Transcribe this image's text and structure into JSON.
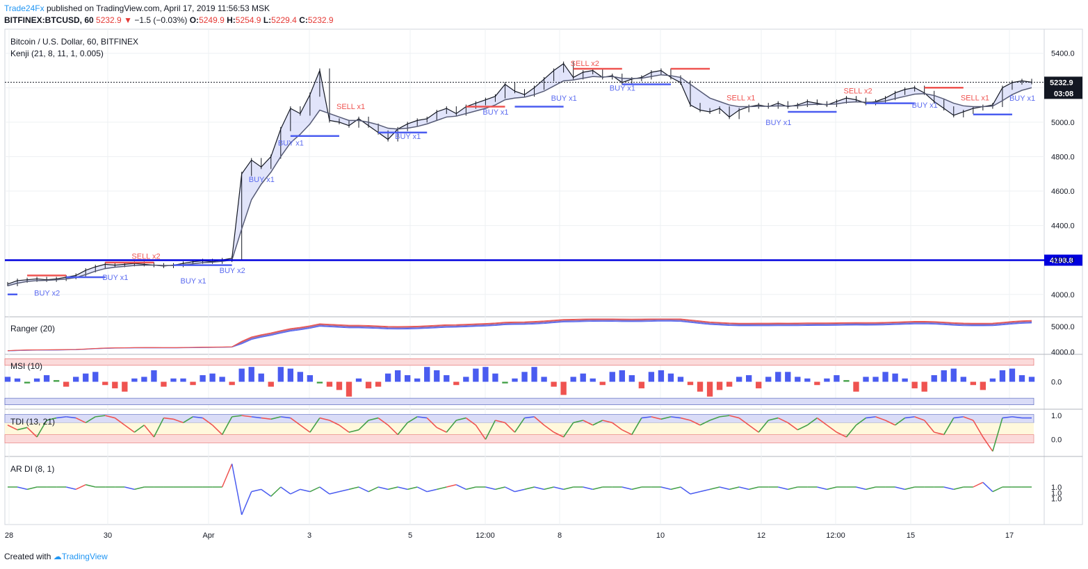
{
  "header": {
    "publisher": "Trade24Fx",
    "published_text": "published on TradingView.com, April 17, 2019 11:56:53 MSK",
    "symbol": "BITFINEX:BTCUSD, 60",
    "last": "5232.9",
    "change": "−1.5 (−0.03%)",
    "o_label": "O:",
    "o_value": "5249.9",
    "h_label": "H:",
    "h_value": "5254.9",
    "l_label": "L:",
    "l_value": "5229.4",
    "c_label": "C:",
    "c_value": "5232.9"
  },
  "footer": {
    "created_with": "Created with",
    "brand": "TradingView"
  },
  "colors": {
    "up": "#4a5cf0",
    "down": "#ef5350",
    "line": "#0000dd",
    "grid": "#eef0f3"
  },
  "chart_data": {
    "type": "line",
    "title": "Bitcoin / U.S. Dollar, 60, BITFINEX",
    "indicator": "Kenji (21, 8, 11, 1, 0.005)",
    "x_ticks": [
      "28",
      "30",
      "Apr",
      "3",
      "5",
      "12:00",
      "8",
      "10",
      "12",
      "12:00",
      "15",
      "17"
    ],
    "ylim": [
      3870,
      5540
    ],
    "y_ticks": [
      "5400.0",
      "5200.0",
      "5000.0",
      "4800.0",
      "4600.0",
      "4400.0",
      "4200.0",
      "4000.0"
    ],
    "y_tick_values": [
      5400,
      5200,
      5000,
      4800,
      4600,
      4400,
      4200,
      4000
    ],
    "current_price": "5232.9",
    "countdown": "03:08",
    "hline_value": 4198.8,
    "hline_label": "4198.8",
    "series": [
      {
        "name": "BTCUSD",
        "values": [
          4060,
          4080,
          4085,
          4090,
          4085,
          4090,
          4100,
          4110,
          4140,
          4160,
          4175,
          4170,
          4175,
          4180,
          4175,
          4170,
          4165,
          4170,
          4180,
          4190,
          4195,
          4190,
          4200,
          4210,
          4700,
          4780,
          4740,
          4800,
          4960,
          5080,
          5050,
          5160,
          5300,
          5010,
          5000,
          4980,
          5020,
          4980,
          4940,
          4900,
          4960,
          4990,
          5010,
          5020,
          5060,
          5080,
          5050,
          5090,
          5110,
          5130,
          5150,
          5220,
          5180,
          5160,
          5200,
          5250,
          5300,
          5340,
          5260,
          5290,
          5300,
          5260,
          5270,
          5230,
          5250,
          5260,
          5290,
          5300,
          5260,
          5230,
          5100,
          5070,
          5060,
          5080,
          5030,
          5070,
          5090,
          5100,
          5090,
          5110,
          5090,
          5100,
          5120,
          5110,
          5100,
          5120,
          5140,
          5130,
          5110,
          5120,
          5140,
          5170,
          5190,
          5200,
          5170,
          5120,
          5080,
          5040,
          5060,
          5080,
          5090,
          5100,
          5200,
          5230,
          5240,
          5232
        ]
      },
      {
        "name": "Kenji",
        "values": [
          4050,
          4065,
          4075,
          4080,
          4082,
          4085,
          4090,
          4098,
          4115,
          4135,
          4150,
          4158,
          4163,
          4168,
          4170,
          4170,
          4168,
          4168,
          4172,
          4178,
          4184,
          4187,
          4192,
          4200,
          4380,
          4550,
          4640,
          4710,
          4800,
          4880,
          4930,
          4990,
          5070,
          5050,
          5030,
          5010,
          5010,
          5000,
          4985,
          4965,
          4960,
          4965,
          4975,
          4990,
          5010,
          5030,
          5035,
          5050,
          5065,
          5080,
          5100,
          5130,
          5140,
          5145,
          5160,
          5180,
          5210,
          5240,
          5245,
          5255,
          5265,
          5262,
          5265,
          5255,
          5253,
          5255,
          5265,
          5275,
          5270,
          5260,
          5220,
          5180,
          5140,
          5120,
          5100,
          5090,
          5090,
          5092,
          5092,
          5095,
          5094,
          5095,
          5102,
          5104,
          5103,
          5106,
          5115,
          5118,
          5116,
          5117,
          5123,
          5137,
          5150,
          5163,
          5166,
          5155,
          5135,
          5110,
          5095,
          5090,
          5090,
          5093,
          5125,
          5160,
          5185,
          5200
        ]
      }
    ],
    "markers": [
      {
        "text": "BUY x2",
        "i": 4,
        "v": 4050,
        "side": "buy"
      },
      {
        "text": "BUY x1",
        "i": 11,
        "v": 4140,
        "side": "buy"
      },
      {
        "text": "SELL x2",
        "i": 14,
        "v": 4190,
        "side": "sell"
      },
      {
        "text": "BUY x1",
        "i": 19,
        "v": 4120,
        "side": "buy"
      },
      {
        "text": "BUY x2",
        "i": 23,
        "v": 4180,
        "side": "buy"
      },
      {
        "text": "BUY x1",
        "i": 26,
        "v": 4710,
        "side": "buy"
      },
      {
        "text": "BUY x1",
        "i": 29,
        "v": 4920,
        "side": "buy"
      },
      {
        "text": "SELL x1",
        "i": 35,
        "v": 5060,
        "side": "sell"
      },
      {
        "text": "BUY x1",
        "i": 41,
        "v": 4960,
        "side": "buy"
      },
      {
        "text": "BUY x1",
        "i": 50,
        "v": 5100,
        "side": "buy"
      },
      {
        "text": "SELL x2",
        "i": 59,
        "v": 5310,
        "side": "sell"
      },
      {
        "text": "BUY x1",
        "i": 57,
        "v": 5180,
        "side": "buy"
      },
      {
        "text": "BUY x1",
        "i": 63,
        "v": 5240,
        "side": "buy"
      },
      {
        "text": "SELL x1",
        "i": 75,
        "v": 5110,
        "side": "sell"
      },
      {
        "text": "BUY x1",
        "i": 79,
        "v": 5040,
        "side": "buy"
      },
      {
        "text": "SELL x2",
        "i": 87,
        "v": 5150,
        "side": "sell"
      },
      {
        "text": "BUY x1",
        "i": 94,
        "v": 5140,
        "side": "buy"
      },
      {
        "text": "SELL x1",
        "i": 99,
        "v": 5110,
        "side": "sell"
      },
      {
        "text": "BUY x1",
        "i": 104,
        "v": 5180,
        "side": "buy"
      }
    ],
    "levels": [
      {
        "i0": 0,
        "i1": 1,
        "v": 4000,
        "side": "buy"
      },
      {
        "i0": 2,
        "i1": 6,
        "v": 4110,
        "side": "sell"
      },
      {
        "i0": 6,
        "i1": 10,
        "v": 4100,
        "side": "buy"
      },
      {
        "i0": 10,
        "i1": 15,
        "v": 4185,
        "side": "sell"
      },
      {
        "i0": 17,
        "i1": 23,
        "v": 4170,
        "side": "buy"
      },
      {
        "i0": 29,
        "i1": 34,
        "v": 4920,
        "side": "buy"
      },
      {
        "i0": 38,
        "i1": 43,
        "v": 4940,
        "side": "buy"
      },
      {
        "i0": 47,
        "i1": 51,
        "v": 5090,
        "side": "sell"
      },
      {
        "i0": 52,
        "i1": 57,
        "v": 5090,
        "side": "buy"
      },
      {
        "i0": 58,
        "i1": 63,
        "v": 5310,
        "side": "sell"
      },
      {
        "i0": 63,
        "i1": 68,
        "v": 5220,
        "side": "buy"
      },
      {
        "i0": 68,
        "i1": 72,
        "v": 5310,
        "side": "sell"
      },
      {
        "i0": 80,
        "i1": 85,
        "v": 5060,
        "side": "buy"
      },
      {
        "i0": 88,
        "i1": 93,
        "v": 5110,
        "side": "buy"
      },
      {
        "i0": 94,
        "i1": 98,
        "v": 5200,
        "side": "sell"
      },
      {
        "i0": 99,
        "i1": 103,
        "v": 5045,
        "side": "buy"
      }
    ],
    "panels": [
      {
        "name": "Ranger (20)",
        "type": "line",
        "ylim": [
          3990,
          5300
        ],
        "y_ticks": [
          "5000.0",
          "4000.0"
        ],
        "y_tick_values": [
          5000,
          4000
        ]
      },
      {
        "name": "MSI (10)",
        "type": "bar",
        "ylim": [
          -1.5,
          1.5
        ],
        "y_ticks": [
          "0.0"
        ],
        "y_tick_values": [
          0
        ],
        "values": [
          0.3,
          0.2,
          -0.1,
          0.2,
          0.4,
          0.1,
          -0.3,
          0.3,
          0.5,
          0.6,
          -0.2,
          -0.4,
          -0.6,
          0.2,
          0.3,
          0.7,
          -0.3,
          0.2,
          0.2,
          -0.2,
          0.4,
          0.5,
          0.3,
          -0.2,
          0.8,
          0.9,
          0.5,
          -0.3,
          0.9,
          0.8,
          0.6,
          0.4,
          -0.1,
          -0.3,
          -0.5,
          -0.9,
          0.2,
          -0.4,
          -0.3,
          0.5,
          0.7,
          0.4,
          0.2,
          0.9,
          0.7,
          0.4,
          -0.2,
          0.3,
          0.8,
          0.9,
          0.5,
          -0.1,
          0.2,
          0.6,
          0.9,
          0.3,
          -0.3,
          -0.8,
          0.3,
          0.5,
          0.2,
          -0.2,
          0.6,
          0.7,
          0.4,
          -0.4,
          0.6,
          0.7,
          0.5,
          0.3,
          -0.2,
          -0.6,
          -0.9,
          -0.5,
          -0.3,
          0.3,
          0.4,
          -0.4,
          0.3,
          0.6,
          0.6,
          0.3,
          0.2,
          -0.2,
          0.2,
          0.4,
          0.1,
          -0.6,
          0.3,
          0.3,
          0.6,
          0.5,
          0.2,
          -0.4,
          -0.6,
          0.4,
          0.7,
          0.8,
          0.3,
          -0.2,
          -0.5,
          0.2,
          0.7,
          0.8,
          0.4,
          0.3
        ]
      },
      {
        "name": "TDI (13, 21)",
        "type": "line",
        "ylim": [
          -0.6,
          1.15
        ],
        "y_ticks": [
          "1.0",
          "0.0"
        ],
        "y_tick_values": [
          1.0,
          0.0
        ],
        "values": [
          0.6,
          0.4,
          0.5,
          0.1,
          0.8,
          0.9,
          0.95,
          0.9,
          0.7,
          0.95,
          1.0,
          0.9,
          0.6,
          0.3,
          0.6,
          0.1,
          0.9,
          0.85,
          0.7,
          0.95,
          0.9,
          0.6,
          0.2,
          0.95,
          1.0,
          0.95,
          0.9,
          0.85,
          0.95,
          0.9,
          0.6,
          0.3,
          0.9,
          0.8,
          0.6,
          0.3,
          0.4,
          0.8,
          0.9,
          0.6,
          0.2,
          0.7,
          0.95,
          0.9,
          0.5,
          0.3,
          0.8,
          0.9,
          0.6,
          0.0,
          0.8,
          0.7,
          0.3,
          0.9,
          0.95,
          0.6,
          0.3,
          0.1,
          0.7,
          0.8,
          0.6,
          0.8,
          0.7,
          0.4,
          0.2,
          0.9,
          0.95,
          0.85,
          0.95,
          0.9,
          0.8,
          0.6,
          0.8,
          0.95,
          1.0,
          0.9,
          0.6,
          0.3,
          0.8,
          0.9,
          0.7,
          0.4,
          0.6,
          0.9,
          0.6,
          0.3,
          0.1,
          0.6,
          0.9,
          0.95,
          0.8,
          0.6,
          0.9,
          0.95,
          0.8,
          0.3,
          0.2,
          0.9,
          0.95,
          0.8,
          0.1,
          -0.5,
          0.9,
          0.95,
          0.9,
          0.9
        ]
      },
      {
        "name": "AR DI (8, 1)",
        "type": "line",
        "ylim": [
          0.85,
          1.12
        ],
        "y_ticks": [
          "1.0",
          "1.0",
          "1.0"
        ],
        "y_tick_values": [
          1.0,
          0.975,
          0.95
        ],
        "values": [
          1.0,
          1.0,
          0.99,
          1.0,
          1.0,
          1.0,
          1.0,
          0.99,
          1.01,
          1.0,
          1.0,
          1.0,
          1.0,
          0.99,
          1.0,
          1.0,
          1.0,
          1.0,
          1.0,
          1.0,
          1.0,
          1.0,
          1.0,
          1.1,
          0.88,
          0.98,
          0.99,
          0.96,
          1.0,
          0.97,
          0.99,
          0.98,
          1.0,
          0.97,
          0.98,
          0.99,
          1.0,
          0.98,
          1.0,
          0.99,
          1.0,
          0.99,
          1.0,
          0.98,
          0.99,
          1.0,
          1.01,
          0.99,
          1.0,
          1.0,
          0.99,
          1.0,
          0.98,
          0.99,
          1.0,
          0.99,
          1.0,
          0.99,
          1.0,
          1.0,
          0.99,
          1.0,
          1.0,
          1.0,
          0.99,
          1.0,
          1.0,
          1.0,
          0.99,
          1.0,
          0.97,
          0.98,
          0.99,
          1.0,
          0.99,
          1.0,
          0.99,
          1.0,
          1.0,
          1.0,
          0.99,
          1.0,
          1.0,
          1.0,
          0.99,
          1.0,
          1.0,
          1.0,
          0.99,
          1.0,
          1.0,
          1.0,
          0.99,
          1.0,
          1.0,
          1.0,
          1.0,
          0.99,
          1.0,
          1.0,
          1.02,
          0.98,
          1.0,
          1.0,
          1.0,
          1.0
        ]
      }
    ]
  }
}
